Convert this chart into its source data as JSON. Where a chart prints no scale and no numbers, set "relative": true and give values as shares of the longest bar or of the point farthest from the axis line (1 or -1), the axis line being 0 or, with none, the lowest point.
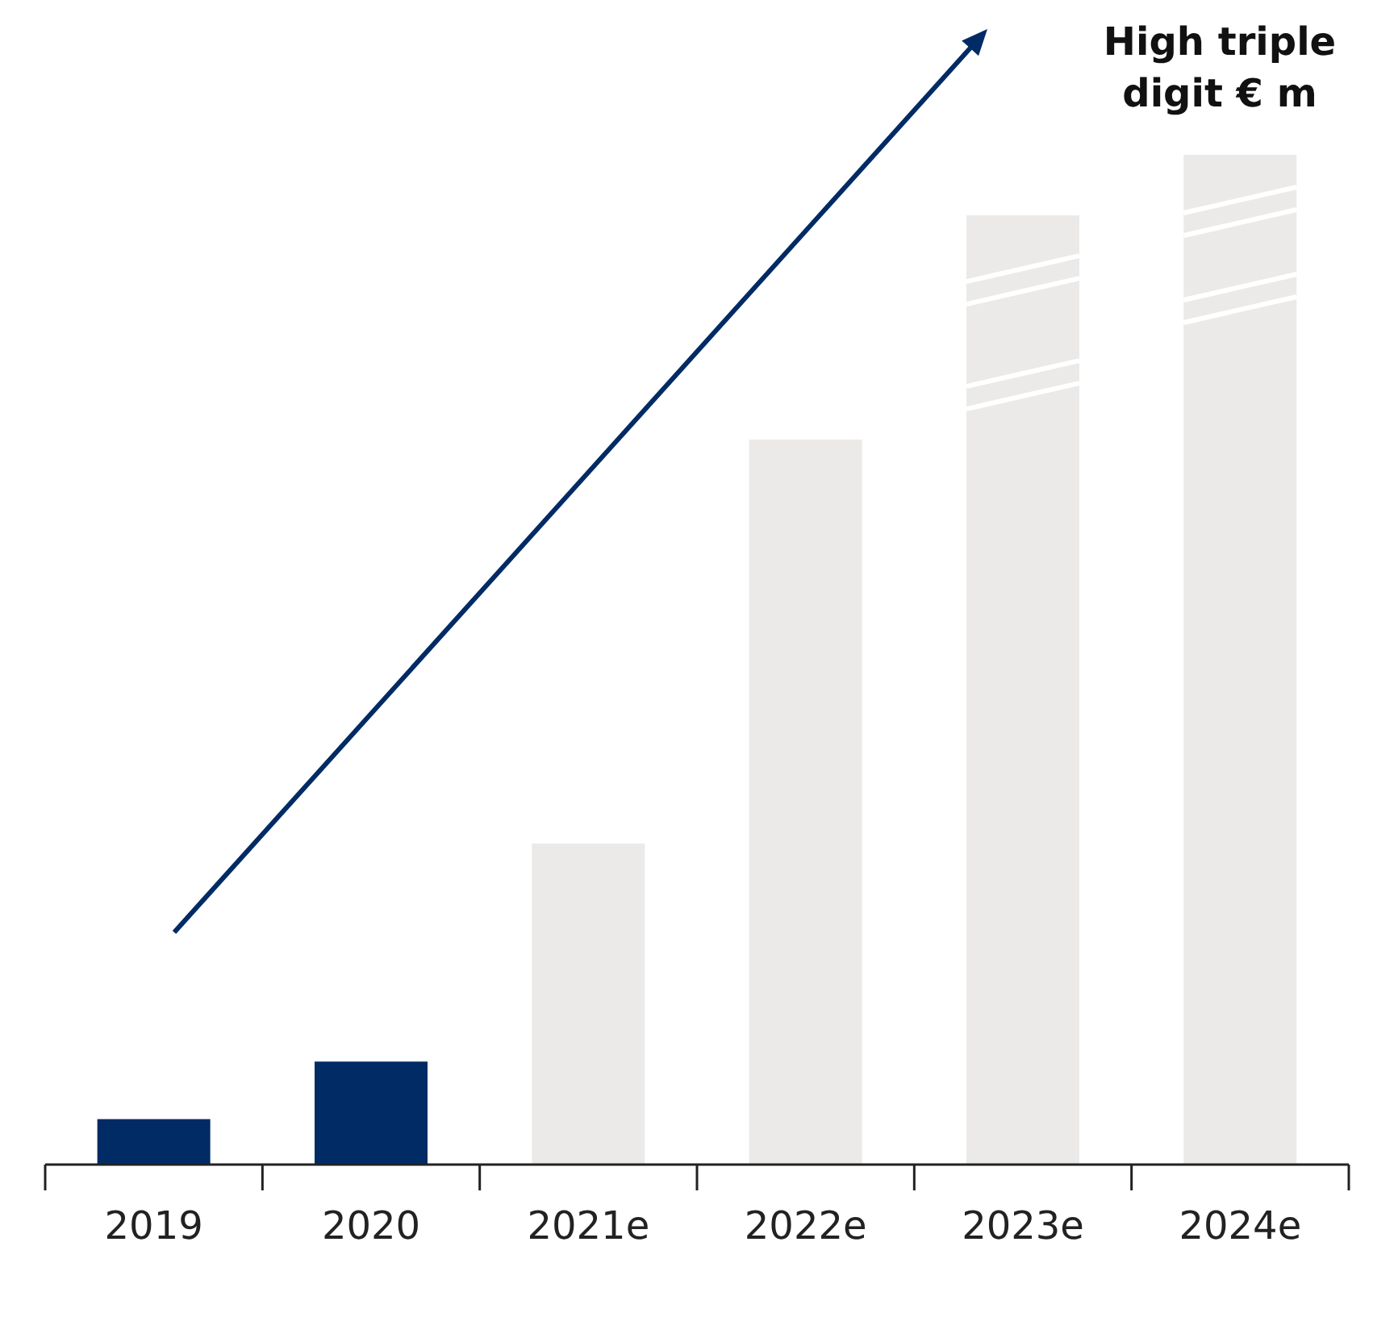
{
  "chart_data": {
    "type": "bar",
    "relative": true,
    "categories": [
      "2019",
      "2020",
      "2021e",
      "2022e",
      "2023e",
      "2024e"
    ],
    "values": [
      0.045,
      0.102,
      0.318,
      0.718,
      0.94,
      1
    ],
    "colors": [
      "#002b64",
      "#002b64",
      "#ebeae8",
      "#ebeae8",
      "#ebeae8",
      "#ebeae8"
    ],
    "annotations": [
      "High triple digit € m"
    ]
  }
}
